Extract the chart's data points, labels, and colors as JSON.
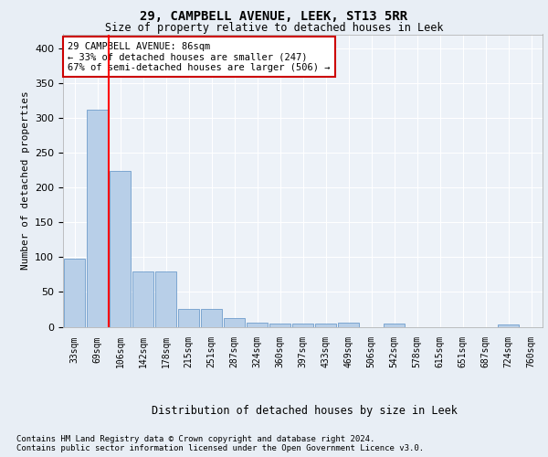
{
  "title1": "29, CAMPBELL AVENUE, LEEK, ST13 5RR",
  "title2": "Size of property relative to detached houses in Leek",
  "xlabel": "Distribution of detached houses by size in Leek",
  "ylabel": "Number of detached properties",
  "categories": [
    "33sqm",
    "69sqm",
    "106sqm",
    "142sqm",
    "178sqm",
    "215sqm",
    "251sqm",
    "287sqm",
    "324sqm",
    "360sqm",
    "397sqm",
    "433sqm",
    "469sqm",
    "506sqm",
    "542sqm",
    "578sqm",
    "615sqm",
    "651sqm",
    "687sqm",
    "724sqm",
    "760sqm"
  ],
  "values": [
    98,
    312,
    224,
    80,
    80,
    25,
    25,
    12,
    6,
    5,
    4,
    4,
    6,
    0,
    4,
    0,
    0,
    0,
    0,
    3,
    0
  ],
  "bar_color": "#b8cfe8",
  "bar_edgecolor": "#5a8fc4",
  "redline_x": 1.5,
  "ylim": [
    0,
    420
  ],
  "yticks": [
    0,
    50,
    100,
    150,
    200,
    250,
    300,
    350,
    400
  ],
  "annotation_text": "29 CAMPBELL AVENUE: 86sqm\n← 33% of detached houses are smaller (247)\n67% of semi-detached houses are larger (506) →",
  "annotation_box_color": "#ffffff",
  "annotation_box_edgecolor": "#cc0000",
  "footer1": "Contains HM Land Registry data © Crown copyright and database right 2024.",
  "footer2": "Contains public sector information licensed under the Open Government Licence v3.0.",
  "bg_color": "#e8eef5",
  "plot_bg_color": "#edf2f8",
  "grid_color": "#ffffff"
}
